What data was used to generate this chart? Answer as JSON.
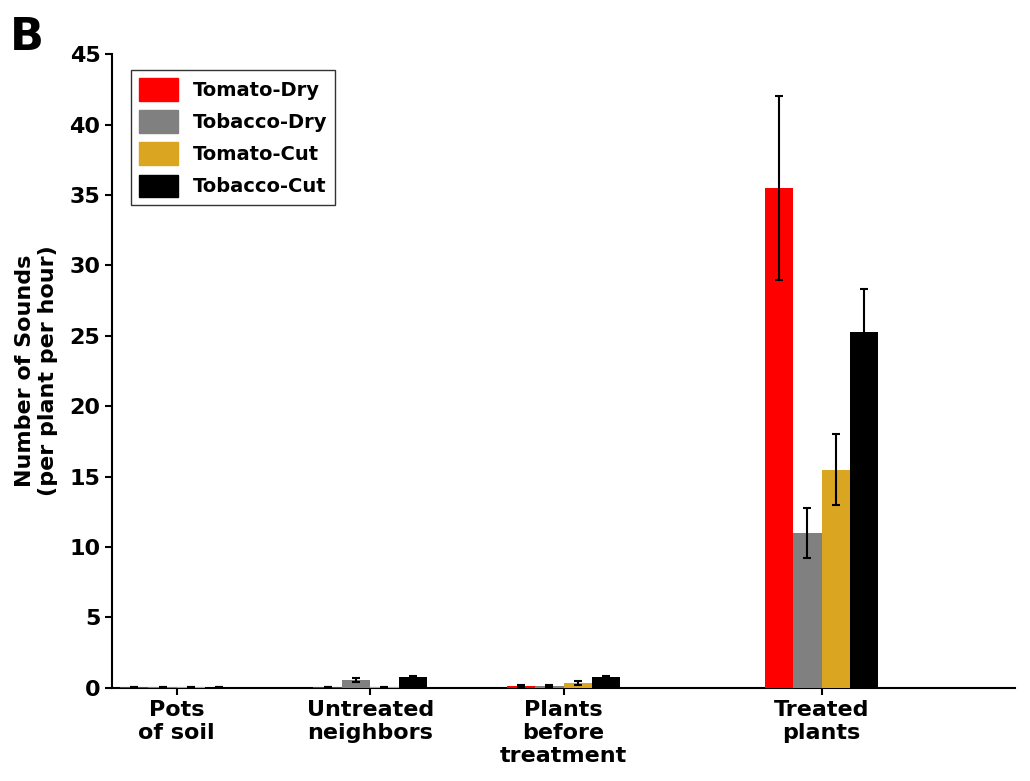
{
  "categories": [
    "Pots\nof soil",
    "Untreated\nneighbors",
    "Plants\nbefore\ntreatment",
    "Treated\nplants"
  ],
  "series": {
    "Tomato-Dry": [
      0.05,
      0.05,
      0.15,
      35.5
    ],
    "Tobacco-Dry": [
      0.05,
      0.55,
      0.15,
      11.0
    ],
    "Tomato-Cut": [
      0.05,
      0.05,
      0.35,
      15.5
    ],
    "Tobacco-Cut": [
      0.05,
      0.75,
      0.75,
      25.3
    ]
  },
  "errors": {
    "Tomato-Dry": [
      0.02,
      0.02,
      0.08,
      6.5
    ],
    "Tobacco-Dry": [
      0.02,
      0.12,
      0.08,
      1.8
    ],
    "Tomato-Cut": [
      0.02,
      0.02,
      0.15,
      2.5
    ],
    "Tobacco-Cut": [
      0.02,
      0.08,
      0.12,
      3.0
    ]
  },
  "colors": {
    "Tomato-Dry": "#ff0000",
    "Tobacco-Dry": "#808080",
    "Tomato-Cut": "#daa520",
    "Tobacco-Cut": "#000000"
  },
  "ylabel": "Number of Sounds (per plant per hour)",
  "ylim": [
    0,
    45
  ],
  "yticks": [
    0,
    5,
    10,
    15,
    20,
    25,
    30,
    35,
    40,
    45
  ],
  "panel_label": "B",
  "bar_width": 0.22,
  "group_positions": [
    0.5,
    2.0,
    3.5,
    5.5
  ],
  "background_color": "#ffffff",
  "tick_fontsize": 16,
  "label_fontsize": 16,
  "legend_fontsize": 14
}
